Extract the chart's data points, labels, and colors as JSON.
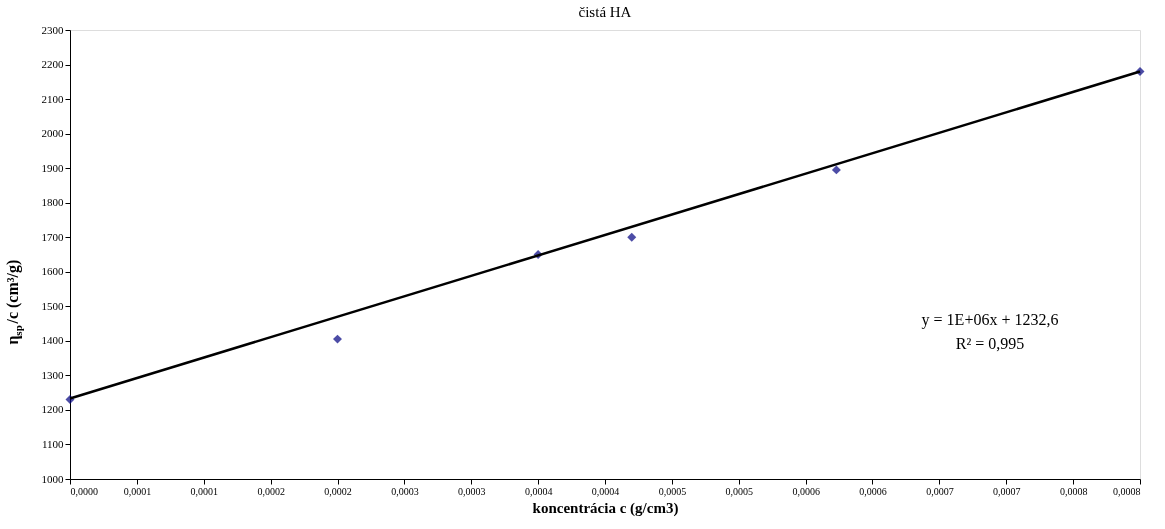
{
  "chart_data": {
    "type": "scatter",
    "title": "čistá HA",
    "xlabel": "koncentrácia c (g/cm3)",
    "ylabel": "η$_{sp}$/c (cm³/g)",
    "x": [
      0,
      0.0002,
      0.00035,
      0.00042,
      0.000573,
      0.0008
    ],
    "series": [
      {
        "type": "scatter",
        "color": "#000080",
        "values": [
          1230,
          1405,
          1650,
          1700,
          1895,
          2180
        ],
        "marker": "diamond"
      },
      {
        "type": "line",
        "color": "#000000",
        "x": [
          0,
          0.0008
        ],
        "values": [
          1233,
          2180
        ],
        "marker": "none"
      }
    ],
    "xlim": [
      0,
      0.0008
    ],
    "xticks": [
      {
        "value": 0,
        "label": "0,0000"
      },
      {
        "value": 5e-05,
        "label": "0,0001"
      },
      {
        "value": 0.0001,
        "label": "0,0001"
      },
      {
        "value": 0.00015,
        "label": "0,0002"
      },
      {
        "value": 0.0002,
        "label": "0,0002"
      },
      {
        "value": 0.00025,
        "label": "0,0003"
      },
      {
        "value": 0.0003,
        "label": "0,0003"
      },
      {
        "value": 0.00035,
        "label": "0,0004"
      },
      {
        "value": 0.0004,
        "label": "0,0004"
      },
      {
        "value": 0.00045,
        "label": "0,0005"
      },
      {
        "value": 0.0005,
        "label": "0,0005"
      },
      {
        "value": 0.00055,
        "label": "0,0006"
      },
      {
        "value": 0.0006,
        "label": "0,0006"
      },
      {
        "value": 0.00065,
        "label": "0,0007"
      },
      {
        "value": 0.0007,
        "label": "0,0007"
      },
      {
        "value": 0.00075,
        "label": "0,0008"
      },
      {
        "value": 0.0008,
        "label": "0,0008"
      }
    ],
    "ylim": [
      1000,
      2300
    ],
    "yticks": [
      1000,
      1100,
      1200,
      1300,
      1400,
      1500,
      1600,
      1700,
      1800,
      1900,
      2000,
      2100,
      2200,
      2300
    ],
    "grid": false,
    "annotations": [
      "y = 1E+06x + 1232,6",
      "R² = 0,995"
    ]
  }
}
